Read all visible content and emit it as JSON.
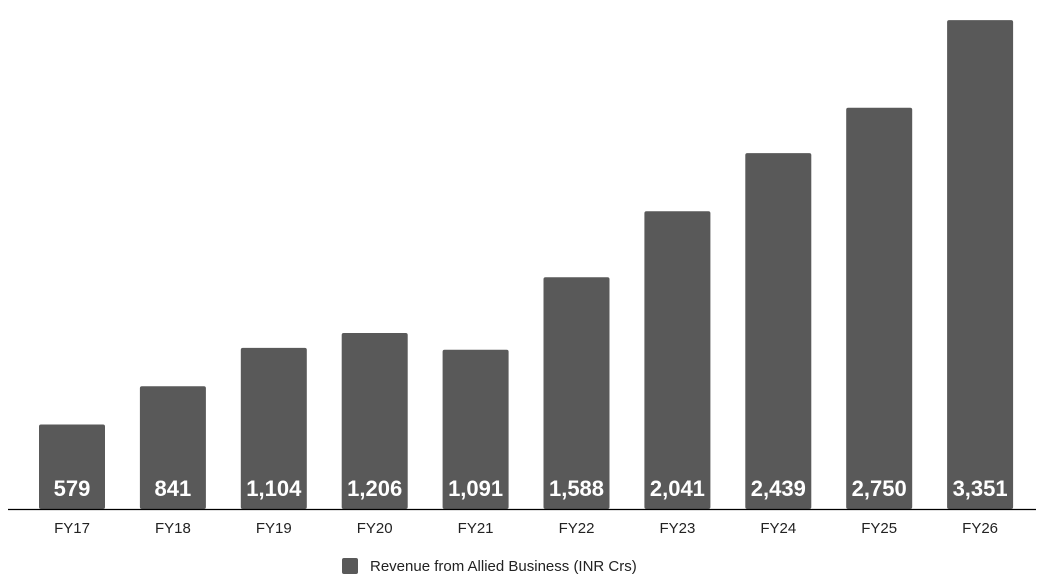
{
  "chart_data": {
    "type": "bar",
    "categories": [
      "FY17",
      "FY18",
      "FY19",
      "FY20",
      "FY21",
      "FY22",
      "FY23",
      "FY24",
      "FY25",
      "FY26"
    ],
    "series": [
      {
        "name": "Revenue from Allied Business (INR Crs)",
        "values": [
          579,
          841,
          1104,
          1206,
          1091,
          1588,
          2041,
          2439,
          2750,
          3351
        ],
        "data_labels": [
          "579",
          "841",
          "1,104",
          "1,206",
          "1,091",
          "1,588",
          "2,041",
          "2,439",
          "2,750",
          "3,351"
        ]
      }
    ],
    "title": "",
    "xlabel": "",
    "ylabel": "",
    "ylim": [
      0,
      3420
    ],
    "grid": false,
    "legend": {
      "position": "bottom"
    },
    "colors": {
      "bar": "#595959",
      "axis": "#000000"
    }
  }
}
